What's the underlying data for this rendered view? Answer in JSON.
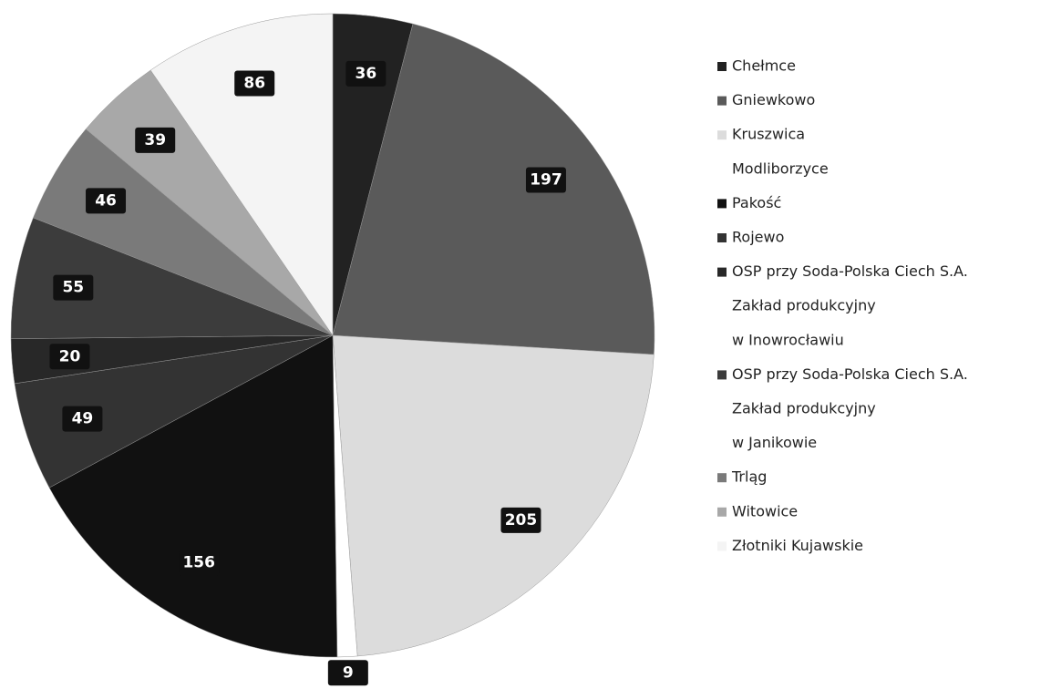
{
  "chart_data": {
    "type": "pie",
    "categories": [
      "Chełmce",
      "Gniewkowo",
      "Kruszwica",
      "Modliborzyce",
      "Pakość",
      "Rojewo",
      [
        "OSP przy Soda-Polska Ciech S.A.",
        "Zakład produkcyjny",
        "w Inowrocławiu"
      ],
      [
        "OSP przy Soda-Polska Ciech S.A.",
        "Zakład produkcyjny",
        "w Janikowie"
      ],
      "Trląg",
      "Witowice",
      "Złotniki Kujawskie"
    ],
    "values": [
      36,
      197,
      205,
      9,
      156,
      49,
      20,
      55,
      46,
      39,
      86
    ],
    "colors": [
      "#222222",
      "#5a5a5a",
      "#dcdcdc",
      "#ffffff",
      "#111111",
      "#333333",
      "#282828",
      "#3c3c3c",
      "#7a7a7a",
      "#a8a8a8",
      "#f4f4f4"
    ]
  }
}
